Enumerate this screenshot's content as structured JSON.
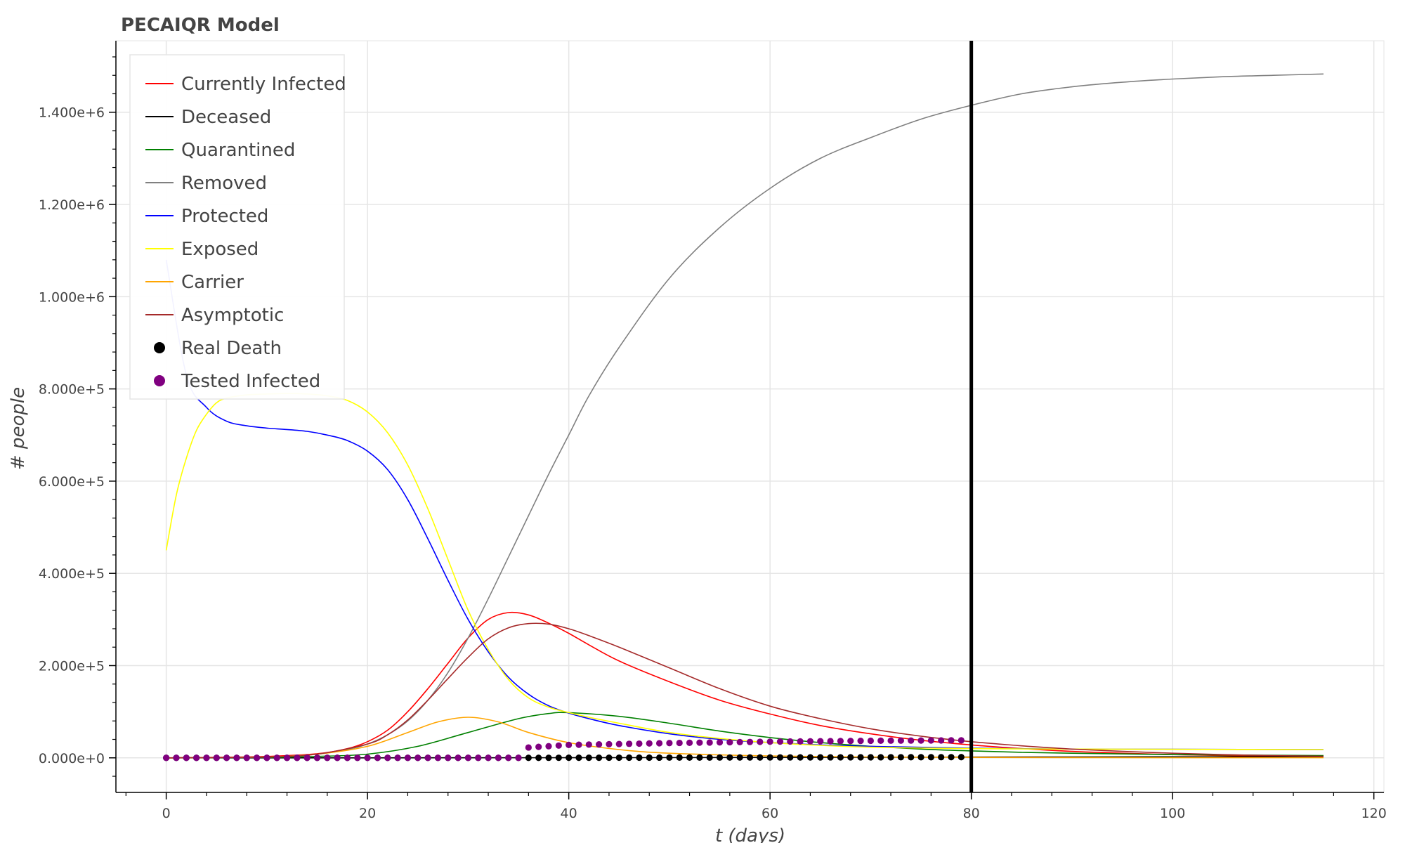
{
  "chart_data": {
    "type": "line",
    "title": "PECAIQR Model",
    "xlabel": "t (days)",
    "ylabel": "# people",
    "xlim": [
      -5,
      121
    ],
    "ylim": [
      -75000,
      1555000
    ],
    "x_ticks": [
      0,
      20,
      40,
      60,
      80,
      100,
      120
    ],
    "x_tick_labels": [
      "0",
      "20",
      "40",
      "60",
      "80",
      "100",
      "120"
    ],
    "y_ticks": [
      0,
      200000,
      400000,
      600000,
      800000,
      1000000,
      1200000,
      1400000
    ],
    "y_tick_labels": [
      "0.000e+0",
      "2.000e+5",
      "4.000e+5",
      "6.000e+5",
      "8.000e+5",
      "1.000e+6",
      "1.200e+6",
      "1.400e+6"
    ],
    "grid": true,
    "legend_position": "top-left",
    "vertical_marker": {
      "x": 80,
      "color": "#000000"
    },
    "series": [
      {
        "name": "Currently Infected",
        "kind": "line",
        "color": "#ff0000",
        "x": [
          0,
          5,
          10,
          15,
          18,
          20,
          22,
          24,
          26,
          28,
          30,
          32,
          34,
          36,
          38,
          40,
          42,
          45,
          50,
          55,
          60,
          65,
          70,
          75,
          80,
          85,
          90,
          95,
          100,
          105,
          110,
          115
        ],
        "y": [
          0,
          1000,
          3000,
          9000,
          20000,
          35000,
          60000,
          100000,
          150000,
          205000,
          260000,
          300000,
          315000,
          310000,
          292000,
          270000,
          245000,
          210000,
          165000,
          125000,
          95000,
          70000,
          52000,
          38000,
          28000,
          20000,
          14000,
          10000,
          7000,
          5000,
          3500,
          2500
        ]
      },
      {
        "name": "Deceased",
        "kind": "line",
        "color": "#000000",
        "x": [
          0,
          20,
          40,
          60,
          80,
          100,
          115
        ],
        "y": [
          0,
          0,
          200,
          800,
          1600,
          2200,
          2500
        ]
      },
      {
        "name": "Quarantined",
        "kind": "line",
        "color": "#008000",
        "x": [
          0,
          10,
          15,
          20,
          25,
          30,
          35,
          38,
          40,
          45,
          50,
          55,
          60,
          65,
          70,
          75,
          80,
          85,
          90,
          100,
          115
        ],
        "y": [
          0,
          1000,
          3000,
          8000,
          25000,
          55000,
          85000,
          96000,
          98000,
          90000,
          75000,
          58000,
          44000,
          33000,
          25000,
          19000,
          15000,
          12000,
          10000,
          7000,
          5000
        ]
      },
      {
        "name": "Removed",
        "kind": "line",
        "color": "#808080",
        "x": [
          0,
          10,
          15,
          18,
          20,
          22,
          24,
          26,
          28,
          30,
          32,
          34,
          36,
          38,
          40,
          42,
          45,
          50,
          55,
          60,
          65,
          70,
          75,
          80,
          85,
          90,
          95,
          100,
          105,
          110,
          115
        ],
        "y": [
          0,
          2000,
          8000,
          18000,
          30000,
          50000,
          80000,
          125000,
          185000,
          260000,
          345000,
          435000,
          525000,
          615000,
          700000,
          785000,
          890000,
          1040000,
          1150000,
          1235000,
          1300000,
          1345000,
          1385000,
          1415000,
          1440000,
          1455000,
          1465000,
          1472000,
          1477000,
          1480000,
          1483000
        ]
      },
      {
        "name": "Protected",
        "kind": "line",
        "color": "#0000ff",
        "x": [
          0,
          2,
          4,
          6,
          8,
          10,
          12,
          14,
          16,
          18,
          20,
          22,
          24,
          26,
          28,
          30,
          32,
          34,
          36,
          38,
          40,
          42,
          45,
          50,
          55,
          60,
          65,
          70,
          80,
          90,
          100,
          115
        ],
        "y": [
          1080000,
          830000,
          760000,
          730000,
          720000,
          715000,
          712000,
          708000,
          700000,
          688000,
          665000,
          625000,
          560000,
          475000,
          385000,
          300000,
          230000,
          175000,
          138000,
          113000,
          97000,
          85000,
          70000,
          52000,
          40000,
          33000,
          28000,
          25000,
          21000,
          19000,
          18500,
          18000
        ]
      },
      {
        "name": "Exposed",
        "kind": "line",
        "color": "#ffff00",
        "x": [
          0,
          1,
          2,
          3,
          4,
          5,
          6,
          8,
          10,
          12,
          14,
          16,
          18,
          20,
          22,
          24,
          26,
          28,
          30,
          32,
          34,
          36,
          38,
          40,
          42,
          45,
          50,
          55,
          60,
          65,
          70,
          80,
          90,
          100,
          115
        ],
        "y": [
          450000,
          570000,
          650000,
          710000,
          745000,
          770000,
          780000,
          787000,
          789000,
          790000,
          789000,
          785000,
          775000,
          750000,
          705000,
          635000,
          540000,
          430000,
          320000,
          235000,
          170000,
          130000,
          110000,
          98000,
          88000,
          75000,
          55000,
          42000,
          33000,
          27000,
          23000,
          20000,
          19000,
          18500,
          18000
        ]
      },
      {
        "name": "Carrier",
        "kind": "line",
        "color": "#ffa500",
        "x": [
          0,
          10,
          15,
          20,
          24,
          27,
          30,
          33,
          36,
          40,
          45,
          50,
          60,
          70,
          80,
          90,
          100,
          115
        ],
        "y": [
          0,
          2000,
          8000,
          25000,
          55000,
          78000,
          88000,
          78000,
          55000,
          33000,
          18000,
          10000,
          4000,
          2000,
          1000,
          500,
          300,
          200
        ]
      },
      {
        "name": "Asymptotic",
        "kind": "line",
        "color": "#a52a2a",
        "x": [
          0,
          10,
          15,
          20,
          22,
          24,
          26,
          28,
          30,
          32,
          34,
          36,
          38,
          40,
          42,
          45,
          50,
          55,
          60,
          65,
          70,
          75,
          80,
          85,
          90,
          95,
          100,
          105,
          110,
          115
        ],
        "y": [
          0,
          2000,
          8000,
          30000,
          50000,
          82000,
          125000,
          172000,
          218000,
          258000,
          282000,
          291000,
          290000,
          280000,
          265000,
          240000,
          195000,
          150000,
          112000,
          85000,
          63000,
          47000,
          35000,
          26000,
          19000,
          14000,
          10000,
          7000,
          5000,
          3500
        ]
      },
      {
        "name": "Real Death",
        "kind": "scatter",
        "color": "#000000",
        "x_start": 0,
        "x_end": 79,
        "x_step": 1,
        "y_points": [
          [
            0,
            0
          ],
          [
            35,
            0
          ],
          [
            79,
            1500
          ]
        ]
      },
      {
        "name": "Tested Infected",
        "kind": "scatter",
        "color": "#800080",
        "x_start": 0,
        "x_end": 79,
        "x_step": 1,
        "y_points": [
          [
            0,
            0
          ],
          [
            35,
            0
          ],
          [
            35,
            21000
          ],
          [
            40,
            28000
          ],
          [
            50,
            32000
          ],
          [
            60,
            35000
          ],
          [
            70,
            37000
          ],
          [
            79,
            38000
          ]
        ]
      }
    ]
  }
}
